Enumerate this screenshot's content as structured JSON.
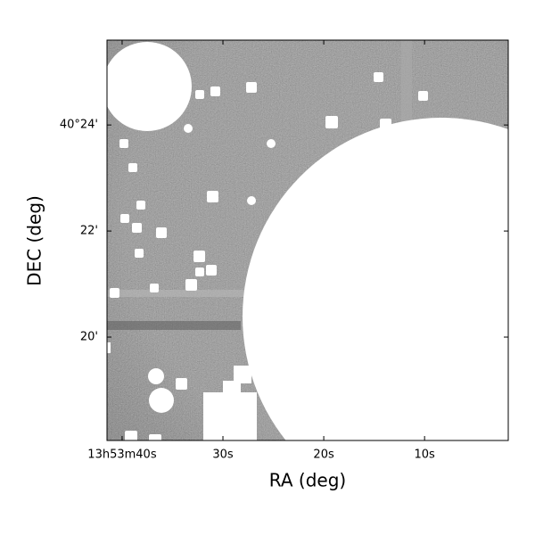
{
  "chart_data": {
    "type": "image",
    "xlabel": "RA (deg)",
    "ylabel": "DEC (deg)",
    "xlim": [
      41.5,
      1.7
    ],
    "ylim": [
      18.05,
      25.6
    ],
    "xticks": [
      {
        "value": 40,
        "label": "13h53m40s"
      },
      {
        "value": 30,
        "label": "30s"
      },
      {
        "value": 20,
        "label": "20s"
      },
      {
        "value": 10,
        "label": "10s"
      }
    ],
    "yticks": [
      {
        "value": 24,
        "label": "40°24'"
      },
      {
        "value": 22,
        "label": "22'"
      },
      {
        "value": 20,
        "label": "20'"
      }
    ]
  }
}
